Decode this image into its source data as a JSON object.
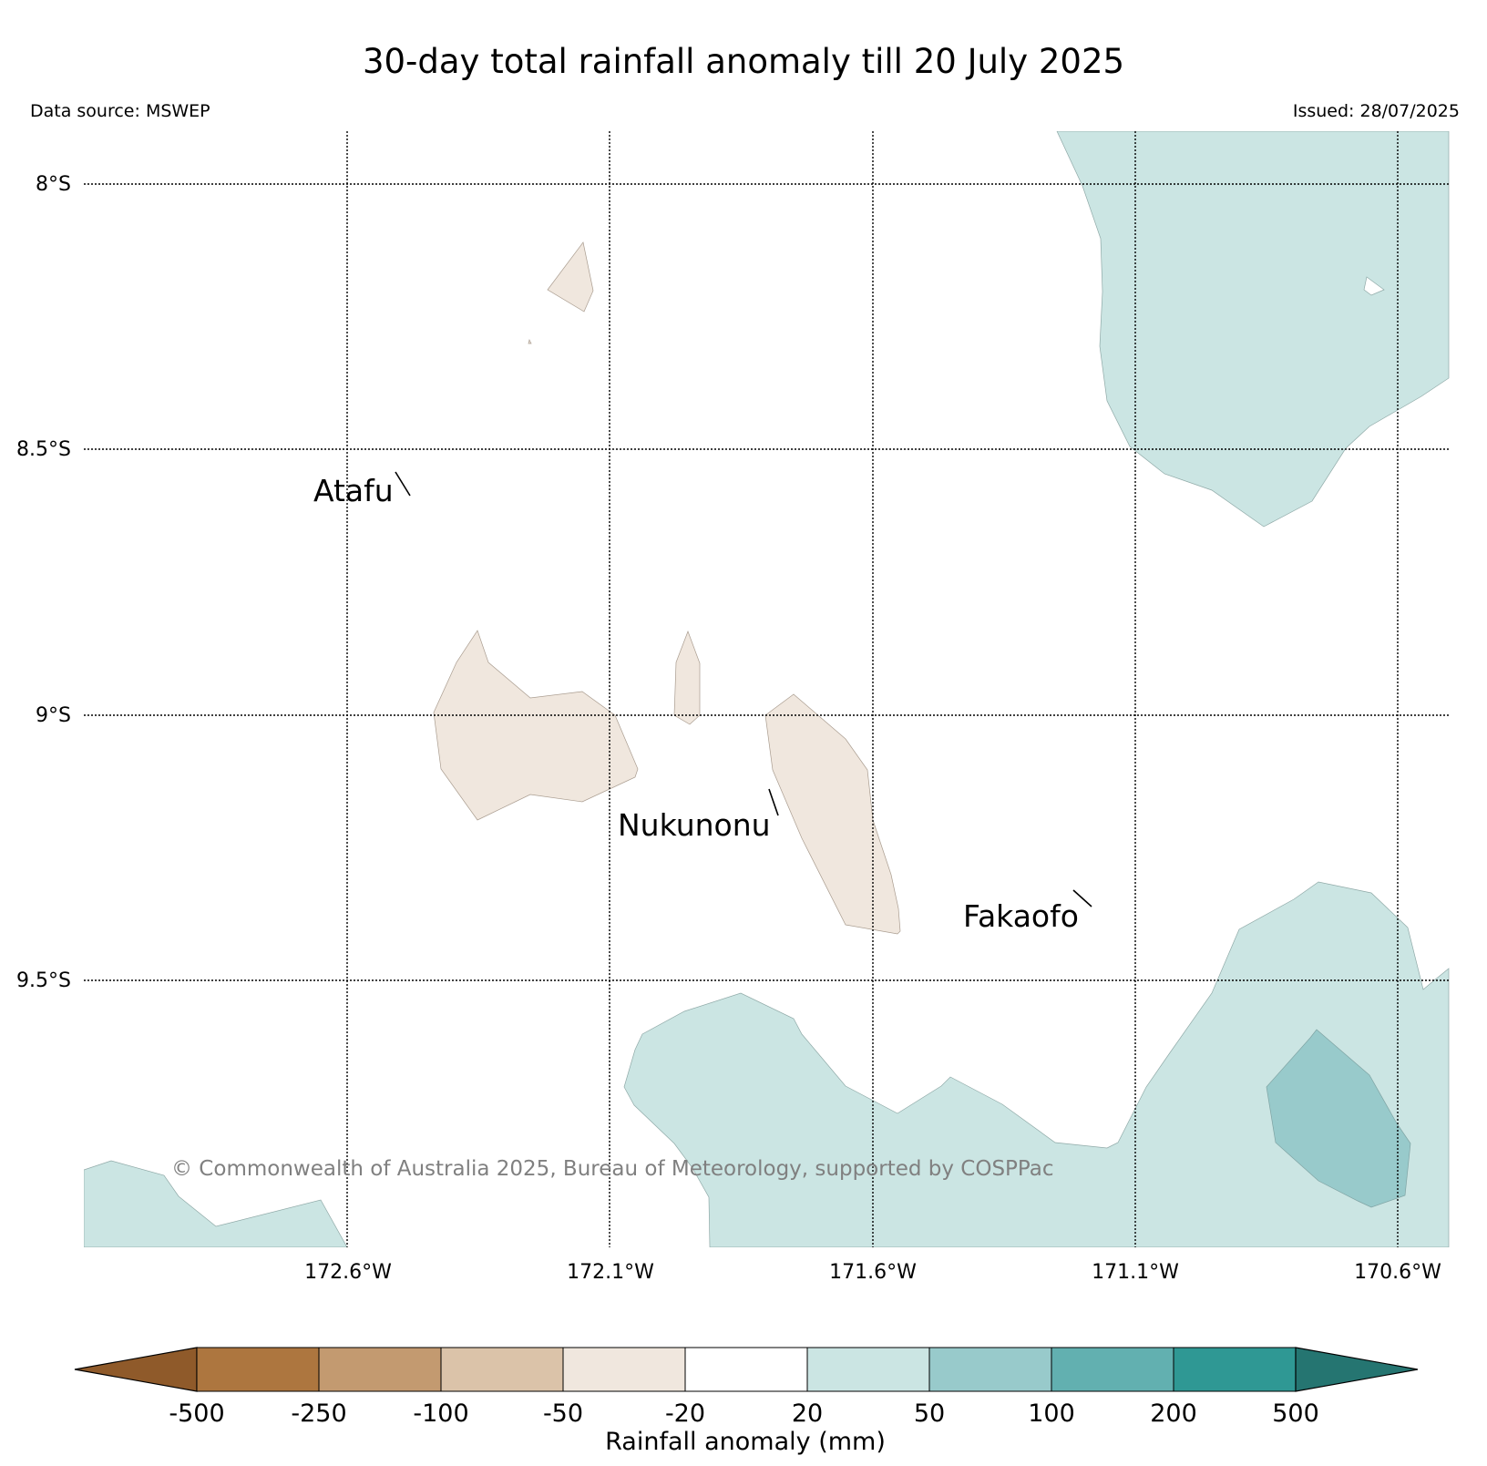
{
  "title": "30-day total rainfall anomaly till 20 July 2025",
  "data_source": "Data source: MSWEP",
  "issued": "Issued: 28/07/2025",
  "copyright": "© Commonwealth of Australia 2025, Bureau of Meteorology, supported by COSPPac",
  "map": {
    "lat_labels": [
      "8°S",
      "8.5°S",
      "9°S",
      "9.5°S"
    ],
    "lon_labels": [
      "172.6°W",
      "172.1°W",
      "171.6°W",
      "171.1°W",
      "170.6°W"
    ],
    "places": [
      {
        "name": "Atafu"
      },
      {
        "name": "Nukunonu"
      },
      {
        "name": "Fakaofo"
      }
    ],
    "regions": [
      {
        "id": "ne-wet",
        "category": "20 to 50"
      },
      {
        "id": "ne-hole",
        "category": "-20 to 20"
      },
      {
        "id": "s-wet",
        "category": "20 to 50"
      },
      {
        "id": "se-wet-core",
        "category": "50 to 100"
      },
      {
        "id": "sw-wet",
        "category": "20 to 50"
      },
      {
        "id": "n-dry-small",
        "category": "-50 to -20"
      },
      {
        "id": "w-dry",
        "category": "-50 to -20"
      },
      {
        "id": "c-dry-narrow",
        "category": "-50 to -20"
      },
      {
        "id": "c-dry-long",
        "category": "-50 to -20"
      }
    ]
  },
  "colorbar": {
    "label": "Rainfall anomaly (mm)",
    "ticks": [
      "-500",
      "-250",
      "-100",
      "-50",
      "-20",
      "20",
      "50",
      "100",
      "200",
      "500"
    ],
    "colors": [
      "#8f5a2a",
      "#ad763f",
      "#c39a70",
      "#dbc3a9",
      "#f0e7de",
      "#ffffff",
      "#cbe5e3",
      "#98cacb",
      "#62b0b0",
      "#2f9894",
      "#257571"
    ],
    "extend": "both"
  }
}
